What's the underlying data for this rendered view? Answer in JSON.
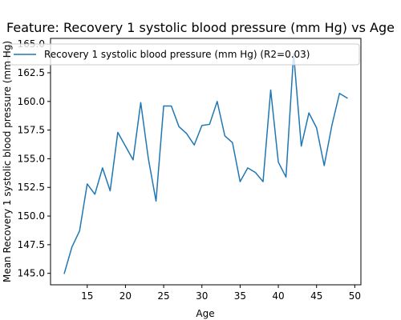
{
  "chart_data": {
    "type": "line",
    "title": "Feature: Recovery 1 systolic blood pressure (mm Hg) vs Age",
    "xlabel": "Age",
    "ylabel": "Mean Recovery 1 systolic blood pressure (mm Hg)",
    "xlim": [
      10.2,
      50.8
    ],
    "ylim": [
      144.0,
      165.5
    ],
    "xticks": [
      15,
      20,
      25,
      30,
      35,
      40,
      45,
      50
    ],
    "yticks": [
      145.0,
      147.5,
      150.0,
      152.5,
      155.0,
      157.5,
      160.0,
      162.5,
      165.0
    ],
    "xtick_labels": [
      "15",
      "20",
      "25",
      "30",
      "35",
      "40",
      "45",
      "50"
    ],
    "ytick_labels": [
      "145.0",
      "147.5",
      "150.0",
      "152.5",
      "155.0",
      "157.5",
      "160.0",
      "162.5",
      "165.0"
    ],
    "grid": false,
    "legend_position": "top-right",
    "series": [
      {
        "name": "Recovery 1 systolic blood pressure (mm Hg) (R2=0.03)",
        "color": "#1f77b4",
        "x": [
          12,
          13,
          14,
          15,
          16,
          17,
          18,
          19,
          20,
          21,
          22,
          23,
          24,
          25,
          26,
          27,
          28,
          29,
          30,
          31,
          32,
          33,
          34,
          35,
          36,
          37,
          38,
          39,
          40,
          41,
          42,
          43,
          44,
          45,
          46,
          47,
          48,
          49
        ],
        "y": [
          145.0,
          147.3,
          148.7,
          152.8,
          151.9,
          154.2,
          152.2,
          157.3,
          156.1,
          154.9,
          159.9,
          155.0,
          151.3,
          159.6,
          159.6,
          157.8,
          157.2,
          156.2,
          157.9,
          158.0,
          160.0,
          157.0,
          156.4,
          153.0,
          154.2,
          153.8,
          153.0,
          161.0,
          154.7,
          153.4,
          164.2,
          156.1,
          159.0,
          157.7,
          154.4,
          157.9,
          160.7,
          160.3
        ]
      }
    ]
  }
}
